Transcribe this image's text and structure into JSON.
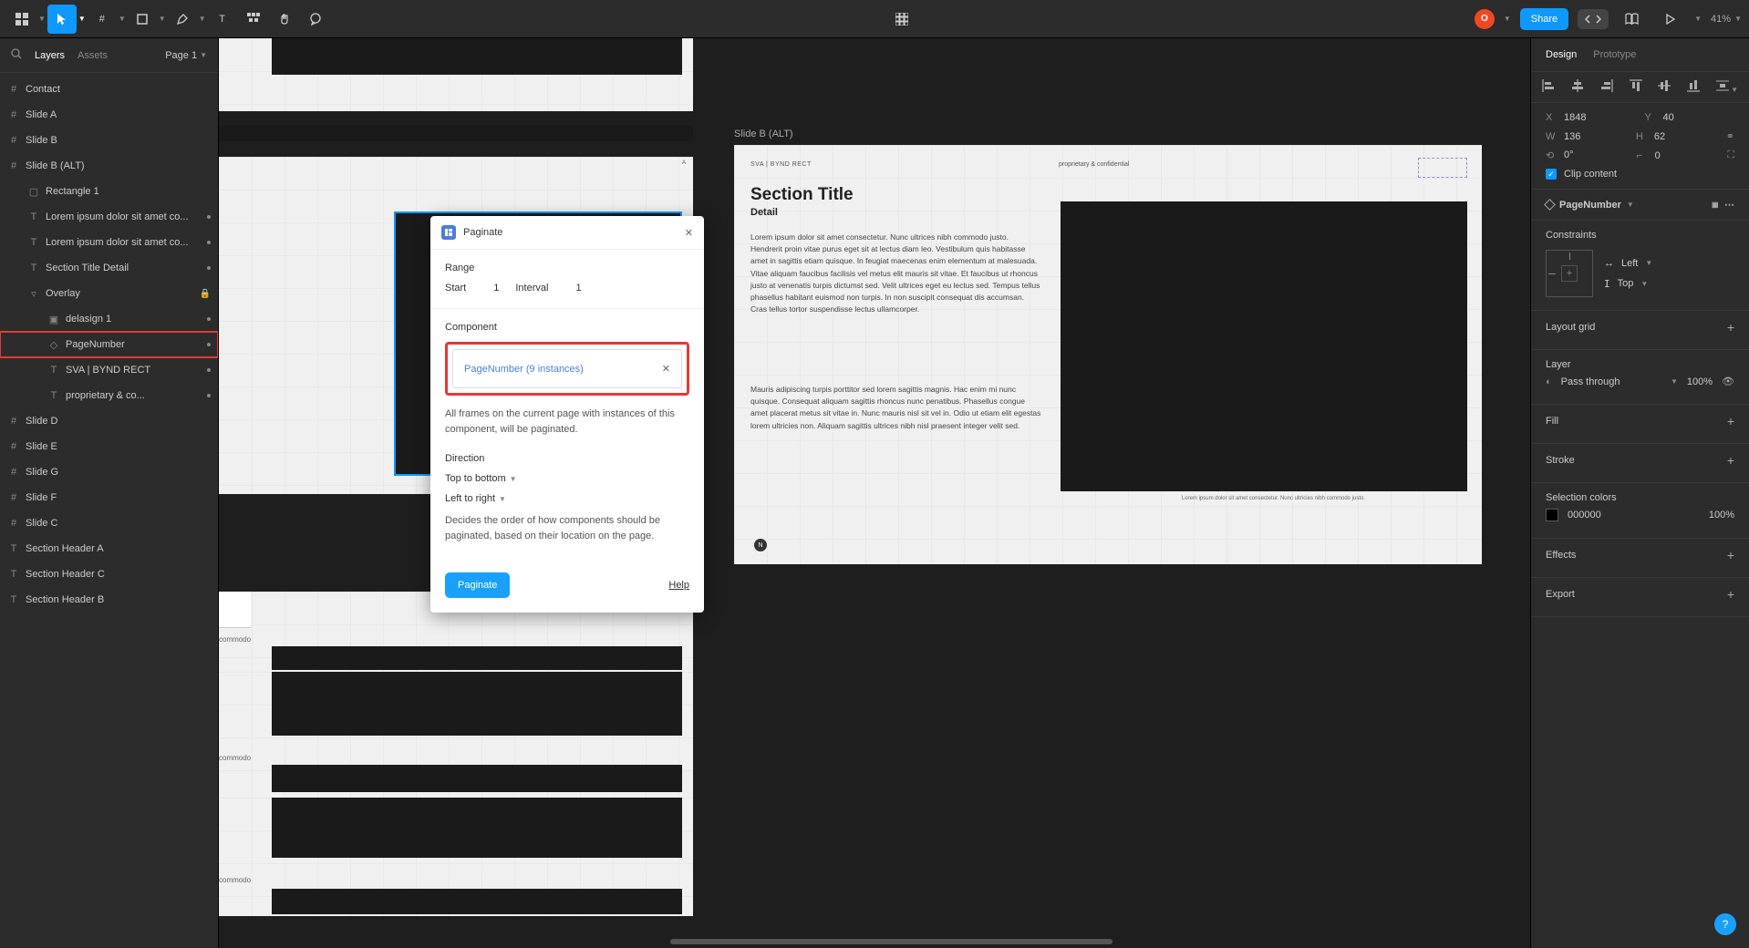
{
  "toolbar": {
    "share": "Share",
    "zoom": "41%",
    "avatar": "O"
  },
  "leftPanel": {
    "tabs": {
      "layers": "Layers",
      "assets": "Assets"
    },
    "page": "Page 1",
    "layers": [
      {
        "name": "Contact",
        "icon": "frame",
        "indent": 0
      },
      {
        "name": "Slide A",
        "icon": "frame",
        "indent": 0
      },
      {
        "name": "Slide B",
        "icon": "frame",
        "indent": 0
      },
      {
        "name": "Slide B (ALT)",
        "icon": "frame",
        "indent": 0
      },
      {
        "name": "Rectangle 1",
        "icon": "rect",
        "indent": 1
      },
      {
        "name": "Lorem ipsum dolor sit amet co...",
        "icon": "text",
        "indent": 1,
        "dot": true
      },
      {
        "name": "Lorem ipsum dolor sit amet co...",
        "icon": "text",
        "indent": 1,
        "dot": true
      },
      {
        "name": "Section Title Detail",
        "icon": "text",
        "indent": 1,
        "dot": true
      },
      {
        "name": "Overlay",
        "icon": "group",
        "indent": 1,
        "lock": true
      },
      {
        "name": "delasign 1",
        "icon": "image",
        "indent": 2,
        "dot": true
      },
      {
        "name": "PageNumber",
        "icon": "component",
        "indent": 2,
        "highlighted": true,
        "dot": true
      },
      {
        "name": "SVA | BYND RECT",
        "icon": "text",
        "indent": 2,
        "dot": true
      },
      {
        "name": "proprietary & co...",
        "icon": "text",
        "indent": 2,
        "dot": true
      },
      {
        "name": "Slide D",
        "icon": "frame",
        "indent": 0
      },
      {
        "name": "Slide E",
        "icon": "frame",
        "indent": 0
      },
      {
        "name": "Slide G",
        "icon": "frame",
        "indent": 0
      },
      {
        "name": "Slide F",
        "icon": "frame",
        "indent": 0
      },
      {
        "name": "Slide C",
        "icon": "frame",
        "indent": 0
      },
      {
        "name": "Section Header A",
        "icon": "text",
        "indent": 0
      },
      {
        "name": "Section Header C",
        "icon": "text",
        "indent": 0
      },
      {
        "name": "Section Header B",
        "icon": "text",
        "indent": 0
      }
    ]
  },
  "plugin": {
    "title": "Paginate",
    "range": "Range",
    "start": "Start",
    "startVal": "1",
    "interval": "Interval",
    "intervalVal": "1",
    "componentLabel": "Component",
    "componentText": "PageNumber (9 instances)",
    "compDesc": "All frames on the current page with instances of this component, will be paginated.",
    "direction": "Direction",
    "topBottom": "Top to bottom",
    "leftRight": "Left to right",
    "dirDesc": "Decides the order of how components should be paginated, based on their location on the page.",
    "button": "Paginate",
    "help": "Help"
  },
  "canvas": {
    "slideB": {
      "label": "Slide B (ALT)",
      "header": "SVA | BYND RECT",
      "proprietary": "proprietary & confidential",
      "sectionTitle": "Section Title",
      "detail": "Detail",
      "para1": "Lorem ipsum dolor sit amet consectetur. Nunc ultrices nibh commodo justo. Hendrerit proin vitae purus eget sit at lectus diam leo. Vestibulum quis habitasse amet in sagittis etiam quisque. In feugiat maecenas enim elementum at malesuada. Vitae aliquam faucibus facilisis vel metus elit mauris sit vitae. Et faucibus ut rhoncus justo at venenatis turpis dictumst sed. Velit ultrices eget eu lectus sed. Tempus tellus phasellus habitant euismod non turpis. In non suscipit consequat dis accumsan. Cras tellus tortor suspendisse lectus ullamcorper.",
      "para2": "Mauris adipiscing turpis porttitor sed lorem sagittis magnis. Hac enim mi nunc quisque. Consequat aliquam sagittis rhoncus nunc penatibus. Phasellus congue amet placerat metus sit vitae in. Nunc mauris nisl sit vel in. Odio ut etiam elit egestas lorem ultricies non. Aliquam sagittis ultrices nibh nisl praesent integer velit sed.",
      "footer": "Lorem ipsum dolor sit amet consectetur. Nunc ultricies nibh commodo justo."
    }
  },
  "rightPanel": {
    "tabs": {
      "design": "Design",
      "prototype": "Prototype"
    },
    "x": "1848",
    "y": "40",
    "w": "136",
    "h": "62",
    "rotation": "0°",
    "radius": "0",
    "clipContent": "Clip content",
    "componentName": "PageNumber",
    "constraints": "Constraints",
    "hConstraint": "Left",
    "vConstraint": "Top",
    "layoutGrid": "Layout grid",
    "layer": "Layer",
    "blendMode": "Pass through",
    "opacity": "100%",
    "fill": "Fill",
    "stroke": "Stroke",
    "selectionColors": "Selection colors",
    "colorHex": "000000",
    "colorOpacity": "100%",
    "effects": "Effects",
    "export": "Export"
  }
}
